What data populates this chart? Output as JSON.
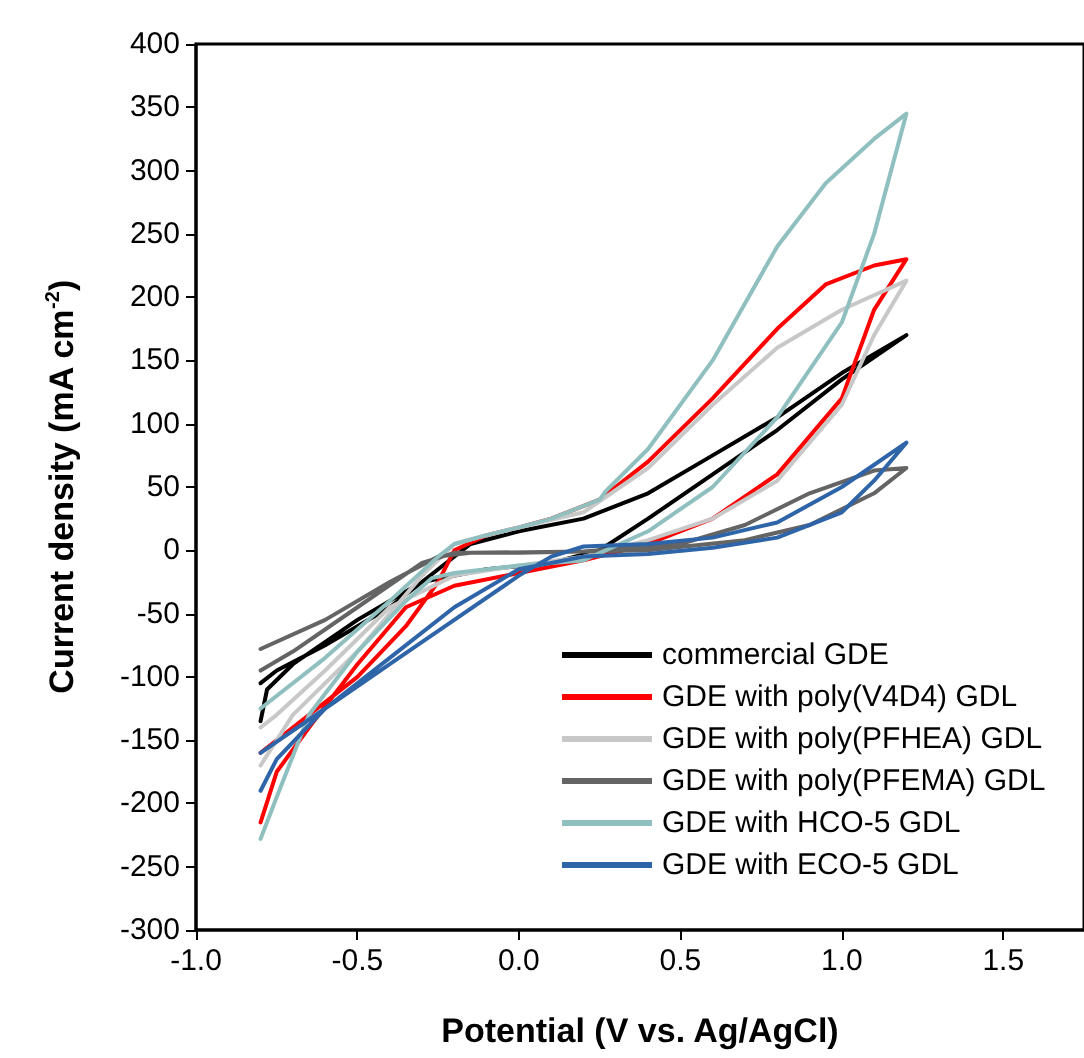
{
  "chart_data": {
    "type": "line",
    "xlabel": "Potential (V vs. Ag/AgCl)",
    "ylabel": "Current density (mA cm$^{-2}$)",
    "xlim": [
      -1.0,
      1.75
    ],
    "xticks": [
      {
        "value": -1.0,
        "label": "-1.0"
      },
      {
        "value": -0.5,
        "label": "-0.5"
      },
      {
        "value": 0,
        "label": "0.0"
      },
      {
        "value": 0.5,
        "label": "0.5"
      },
      {
        "value": 1.0,
        "label": "1.0"
      },
      {
        "value": 1.5,
        "label": "1.5"
      }
    ],
    "ylim": [
      -300,
      400
    ],
    "yticks": [
      -300,
      -250,
      -200,
      -150,
      -100,
      -50,
      0,
      50,
      100,
      150,
      200,
      250,
      300,
      350,
      400
    ],
    "grid": false,
    "legend": "bottom right",
    "marker": "none",
    "line_style": "solid",
    "series": [
      {
        "name": "commercial GDE",
        "color": "#000000",
        "x": [
          -0.8,
          -0.75,
          -0.6,
          -0.4,
          -0.25,
          -0.15,
          0,
          0.2,
          0.4,
          0.6,
          0.8,
          1.0,
          1.2,
          1.0,
          0.8,
          0.6,
          0.4,
          0.25,
          0.1,
          -0.1,
          -0.3,
          -0.5,
          -0.7,
          -0.78,
          -0.8
        ],
        "values": [
          -105,
          -95,
          -75,
          -45,
          -15,
          5,
          15,
          25,
          45,
          75,
          105,
          140,
          170,
          135,
          95,
          60,
          25,
          0,
          -10,
          -15,
          -25,
          -55,
          -90,
          -110,
          -135
        ]
      },
      {
        "name": "GDE with poly(V4D4) GDL",
        "color": "#ff0000",
        "x": [
          -0.8,
          -0.7,
          -0.5,
          -0.35,
          -0.25,
          -0.2,
          -0.1,
          0,
          0.1,
          0.25,
          0.4,
          0.6,
          0.8,
          0.95,
          1.1,
          1.2,
          1.1,
          1.0,
          0.8,
          0.6,
          0.4,
          0.2,
          0,
          -0.2,
          -0.35,
          -0.5,
          -0.65,
          -0.75,
          -0.8
        ],
        "values": [
          -160,
          -140,
          -100,
          -60,
          -25,
          0,
          12,
          18,
          25,
          40,
          70,
          120,
          175,
          210,
          225,
          230,
          190,
          120,
          60,
          25,
          5,
          -8,
          -18,
          -28,
          -45,
          -90,
          -140,
          -175,
          -215
        ]
      },
      {
        "name": "GDE with poly(PFHEA) GDL",
        "color": "#c8c8c8",
        "x": [
          -0.8,
          -0.7,
          -0.5,
          -0.3,
          -0.2,
          -0.1,
          0,
          0.2,
          0.4,
          0.6,
          0.8,
          1.0,
          1.2,
          1.1,
          1.0,
          0.8,
          0.6,
          0.4,
          0.2,
          0,
          -0.2,
          -0.4,
          -0.6,
          -0.75,
          -0.8
        ],
        "values": [
          -170,
          -130,
          -80,
          -20,
          5,
          12,
          18,
          30,
          65,
          115,
          160,
          190,
          213,
          170,
          115,
          55,
          25,
          8,
          -5,
          -12,
          -20,
          -45,
          -95,
          -130,
          -140
        ]
      },
      {
        "name": "GDE with poly(PFEMA) GDL",
        "color": "#646464",
        "x": [
          -0.8,
          -0.6,
          -0.4,
          -0.25,
          -0.15,
          0.2,
          0.5,
          0.7,
          0.9,
          1.1,
          1.2,
          1.1,
          0.9,
          0.7,
          0.4,
          0.0,
          -0.2,
          -0.3,
          -0.5,
          -0.7,
          -0.8
        ],
        "values": [
          -78,
          -55,
          -25,
          -5,
          -2,
          -1,
          5,
          20,
          45,
          63,
          65,
          45,
          20,
          8,
          0,
          -2,
          -2,
          -10,
          -45,
          -80,
          -95
        ]
      },
      {
        "name": "GDE with HCO-5 GDL",
        "color": "#8fbfbf",
        "x": [
          -0.8,
          -0.6,
          -0.4,
          -0.25,
          -0.2,
          -0.1,
          0,
          0.1,
          0.25,
          0.27,
          0.4,
          0.6,
          0.8,
          0.95,
          1.1,
          1.2,
          1.1,
          1.0,
          0.8,
          0.6,
          0.4,
          0.2,
          0,
          -0.2,
          -0.27,
          -0.35,
          -0.5,
          -0.65,
          -0.75,
          -0.8
        ],
        "values": [
          -125,
          -85,
          -40,
          -5,
          5,
          12,
          18,
          25,
          40,
          47,
          80,
          150,
          240,
          290,
          325,
          345,
          250,
          180,
          105,
          50,
          15,
          -8,
          -12,
          -18,
          -22,
          -40,
          -80,
          -130,
          -195,
          -228
        ]
      },
      {
        "name": "GDE with ECO-5 GDL",
        "color": "#2e64a8",
        "x": [
          -0.8,
          -0.6,
          -0.4,
          -0.2,
          0,
          0.1,
          0.2,
          0.4,
          0.6,
          0.8,
          1.0,
          1.2,
          1.1,
          1.0,
          0.8,
          0.6,
          0.4,
          0.2,
          0,
          -0.2,
          -0.4,
          -0.6,
          -0.75,
          -0.8
        ],
        "values": [
          -160,
          -125,
          -90,
          -55,
          -20,
          -5,
          3,
          5,
          10,
          22,
          50,
          85,
          55,
          30,
          10,
          2,
          -3,
          -5,
          -15,
          -45,
          -85,
          -125,
          -165,
          -190
        ]
      }
    ]
  }
}
